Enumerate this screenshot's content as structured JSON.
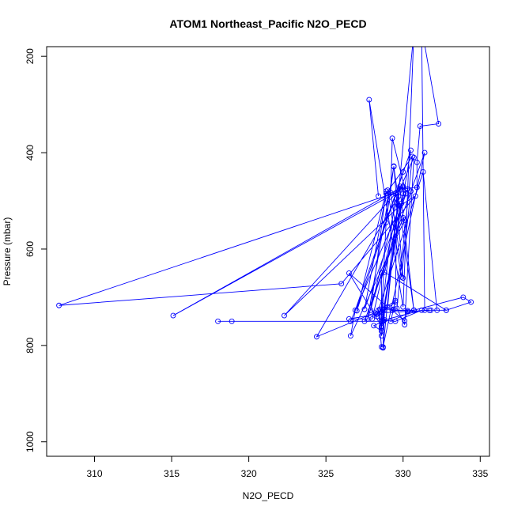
{
  "chart_data": {
    "type": "line",
    "title": "ATOM1 Northeast_Pacific N2O_PECD",
    "xlabel": "N2O_PECD",
    "ylabel": "Pressure (mbar)",
    "xlim": [
      306.9,
      335.6
    ],
    "ylim": [
      1030,
      180
    ],
    "y_reversed": true,
    "x_ticks": [
      310,
      315,
      320,
      325,
      330,
      335
    ],
    "y_ticks": [
      200,
      400,
      600,
      800,
      1000
    ],
    "color": "#0000ff",
    "marker": "open-circle",
    "series": [
      {
        "points": [
          [
            328.4,
            490
          ],
          [
            327.8,
            290
          ],
          [
            330.0,
            720
          ],
          [
            330.7,
            150
          ],
          [
            329.0,
            720
          ],
          [
            326.5,
            650
          ],
          [
            328.6,
            760
          ],
          [
            330.5,
            395
          ],
          [
            328.9,
            545
          ],
          [
            329.4,
            428
          ],
          [
            329.6,
            505
          ],
          [
            330.0,
            660
          ],
          [
            329.2,
            483
          ],
          [
            329.3,
            370
          ],
          [
            330.2,
            485
          ],
          [
            327.5,
            725
          ],
          [
            328.9,
            485
          ],
          [
            330.6,
            408
          ],
          [
            329.6,
            723
          ],
          [
            330.1,
            757
          ],
          [
            330.7,
            410
          ],
          [
            329.8,
            475
          ],
          [
            330.9,
            472
          ],
          [
            330.9,
            420
          ],
          [
            331.1,
            345
          ],
          [
            332.3,
            340
          ],
          [
            331.2,
            140
          ],
          [
            331.4,
            727
          ],
          [
            331.8,
            727
          ],
          [
            330.3,
            730
          ],
          [
            330.7,
            727
          ],
          [
            333.9,
            700
          ],
          [
            334.4,
            710
          ],
          [
            332.8,
            727
          ],
          [
            332.2,
            727
          ],
          [
            331.3,
            440
          ],
          [
            328.4,
            727
          ],
          [
            328.6,
            803
          ],
          [
            328.7,
            803
          ],
          [
            331.4,
            400
          ],
          [
            327.5,
            750
          ],
          [
            330.0,
            535
          ],
          [
            330.1,
            540
          ],
          [
            326.6,
            780
          ],
          [
            326.9,
            727
          ],
          [
            330.0,
            440
          ],
          [
            327.0,
            728
          ],
          [
            328.9,
            480
          ],
          [
            327.9,
            727
          ],
          [
            329.8,
            470
          ],
          [
            328.7,
            750
          ],
          [
            328.1,
            759
          ],
          [
            328.6,
            770
          ],
          [
            328.6,
            650
          ],
          [
            327.7,
            745
          ],
          [
            329.4,
            429
          ],
          [
            330.7,
            727
          ],
          [
            329.2,
            750
          ],
          [
            329.5,
            707
          ],
          [
            328.7,
            725
          ],
          [
            324.4,
            782
          ],
          [
            329.7,
            490
          ],
          [
            328.7,
            805
          ],
          [
            328.8,
            725
          ],
          [
            328.3,
            735
          ],
          [
            326.5,
            745
          ],
          [
            328.0,
            745
          ],
          [
            329.7,
            510
          ],
          [
            329.6,
            495
          ],
          [
            329.5,
            710
          ],
          [
            328.3,
            740
          ],
          [
            328.2,
            733
          ],
          [
            331.7,
            727
          ],
          [
            332.8,
            727
          ],
          [
            328.8,
            648
          ],
          [
            329.9,
            505
          ],
          [
            328.6,
            763
          ],
          [
            328.7,
            748
          ],
          [
            329.5,
            750
          ],
          [
            331.2,
            727
          ],
          [
            328.8,
            747
          ],
          [
            328.6,
            780
          ],
          [
            328.5,
            725
          ],
          [
            329.4,
            725
          ],
          [
            329.3,
            727
          ],
          [
            330.3,
            728
          ],
          [
            330.1,
            749
          ],
          [
            329.3,
            727
          ],
          [
            330.7,
            727
          ],
          [
            329.8,
            475
          ],
          [
            322.3,
            738
          ],
          [
            329.8,
            510
          ],
          [
            330.8,
            490
          ],
          [
            326.0,
            672
          ],
          [
            307.7,
            717
          ],
          [
            329.6,
            482
          ],
          [
            315.1,
            738
          ],
          [
            330.0,
            470
          ],
          [
            330.0,
            485
          ],
          [
            328.6,
            750
          ],
          [
            318.9,
            750
          ],
          [
            318.0,
            750
          ],
          [
            326.6,
            750
          ],
          [
            330.3,
            475
          ],
          [
            330.0,
            472
          ],
          [
            329.5,
            485
          ],
          [
            328.6,
            740
          ],
          [
            329.0,
            478
          ],
          [
            329.9,
            658
          ],
          [
            330.5,
            480
          ]
        ]
      }
    ]
  }
}
